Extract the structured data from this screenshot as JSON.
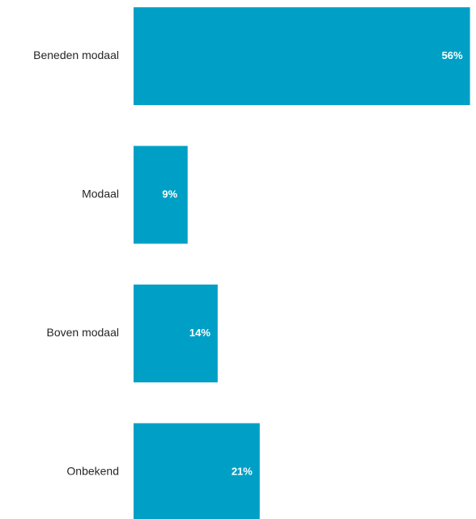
{
  "chart_data": {
    "type": "bar",
    "orientation": "horizontal",
    "categories": [
      "Beneden modaal",
      "Modaal",
      "Boven modaal",
      "Onbekend"
    ],
    "values": [
      56,
      9,
      14,
      21
    ],
    "data_labels": [
      "56%",
      "9%",
      "14%",
      "21%"
    ],
    "unit": "%",
    "bar_color": "#00A0C6",
    "label_color": "#FFFFFF",
    "xlim": [
      0,
      57
    ],
    "grid": false,
    "legend": "none",
    "title": "",
    "xlabel": "",
    "ylabel": ""
  }
}
